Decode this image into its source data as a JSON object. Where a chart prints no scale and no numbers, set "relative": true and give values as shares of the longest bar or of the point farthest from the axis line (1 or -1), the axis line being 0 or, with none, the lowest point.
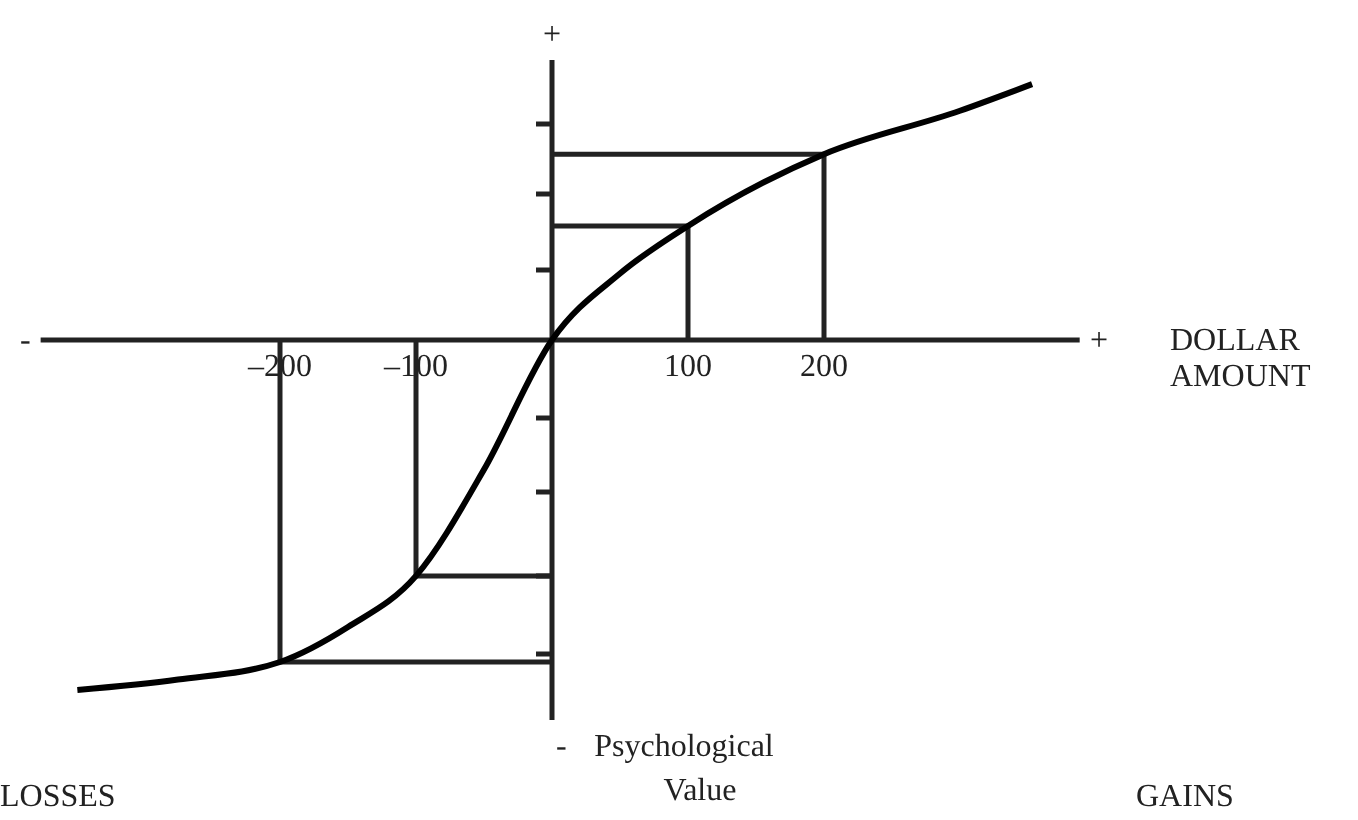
{
  "chart_data": {
    "type": "line",
    "relative": true,
    "xlabel": "DOLLAR AMOUNT",
    "xlim": [
      -376,
      388
    ],
    "xticks": [
      {
        "value": -200,
        "label": "–200"
      },
      {
        "value": -100,
        "label": "–100"
      },
      100,
      200
    ],
    "annotations": [
      "+",
      "-",
      "+",
      "-",
      "LOSSES",
      "GAINS",
      "Psychological Value"
    ],
    "marker": "none",
    "line_style": "solid",
    "series": [
      {
        "color": "#000000",
        "x": [
          -349,
          -275,
          -200,
          -150,
          -100,
          -50,
          0,
          50,
          100,
          200,
          300,
          353
        ],
        "values": [
          -1,
          -0.97,
          -0.92,
          -0.82,
          -0.674,
          -0.37,
          0,
          0.19,
          0.326,
          0.531,
          0.655,
          0.731
        ]
      }
    ]
  }
}
